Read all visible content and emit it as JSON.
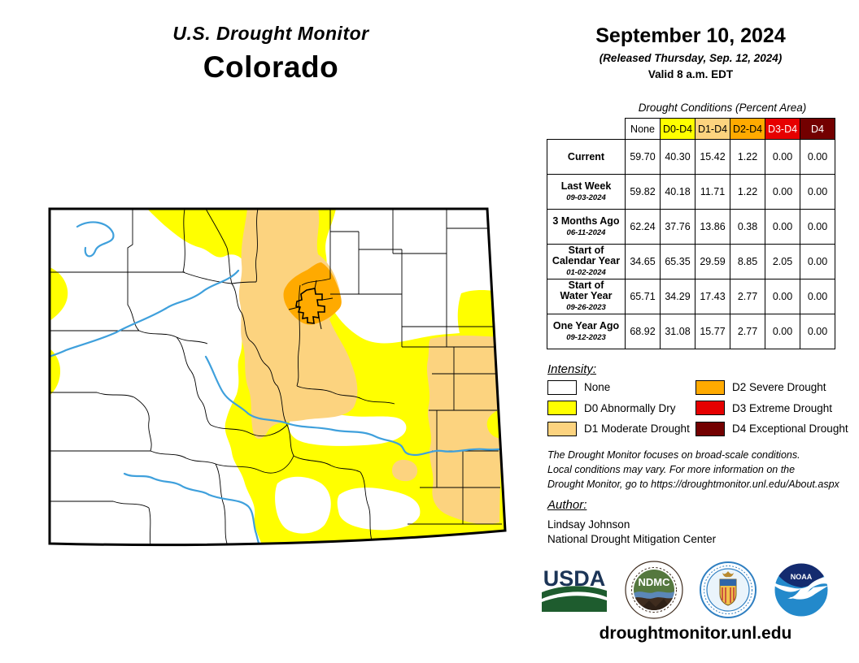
{
  "title": {
    "line1": "U.S. Drought Monitor",
    "state": "Colorado"
  },
  "date_block": {
    "date": "September 10, 2024",
    "released": "(Released Thursday, Sep. 12, 2024)",
    "valid": "Valid 8 a.m. EDT"
  },
  "table": {
    "title": "Drought Conditions (Percent Area)",
    "columns": [
      "None",
      "D0-D4",
      "D1-D4",
      "D2-D4",
      "D3-D4",
      "D4"
    ],
    "header_bg": [
      "#FFFFFF",
      "#FFFF00",
      "#FCD37F",
      "#FFAA00",
      "#E60000",
      "#730000"
    ],
    "header_fg": [
      "#000000",
      "#000000",
      "#000000",
      "#000000",
      "#FFFFFF",
      "#FFFFFF"
    ],
    "rows": [
      {
        "label_lines": [
          "Current"
        ],
        "sublabel": "",
        "values": [
          "59.70",
          "40.30",
          "15.42",
          "1.22",
          "0.00",
          "0.00"
        ]
      },
      {
        "label_lines": [
          "Last Week"
        ],
        "sublabel": "09-03-2024",
        "values": [
          "59.82",
          "40.18",
          "11.71",
          "1.22",
          "0.00",
          "0.00"
        ]
      },
      {
        "label_lines": [
          "3 Months Ago"
        ],
        "sublabel": "06-11-2024",
        "values": [
          "62.24",
          "37.76",
          "13.86",
          "0.38",
          "0.00",
          "0.00"
        ]
      },
      {
        "label_lines": [
          "Start of",
          "Calendar Year"
        ],
        "sublabel": "01-02-2024",
        "values": [
          "34.65",
          "65.35",
          "29.59",
          "8.85",
          "2.05",
          "0.00"
        ]
      },
      {
        "label_lines": [
          "Start of",
          "Water Year"
        ],
        "sublabel": "09-26-2023",
        "values": [
          "65.71",
          "34.29",
          "17.43",
          "2.77",
          "0.00",
          "0.00"
        ]
      },
      {
        "label_lines": [
          "One Year Ago"
        ],
        "sublabel": "09-12-2023",
        "values": [
          "68.92",
          "31.08",
          "15.77",
          "2.77",
          "0.00",
          "0.00"
        ]
      }
    ]
  },
  "legend": {
    "heading": "Intensity:",
    "items": [
      {
        "label": "None",
        "color": "#FFFFFF"
      },
      {
        "label": "D0 Abnormally Dry",
        "color": "#FFFF00"
      },
      {
        "label": "D1 Moderate Drought",
        "color": "#FCD37F"
      },
      {
        "label": "D2 Severe Drought",
        "color": "#FFAA00"
      },
      {
        "label": "D3 Extreme Drought",
        "color": "#E60000"
      },
      {
        "label": "D4 Exceptional Drought",
        "color": "#730000"
      }
    ]
  },
  "disclaimer_lines": [
    "The Drought Monitor focuses on broad-scale conditions.",
    "Local conditions may vary. For more information on the",
    "Drought Monitor, go to https://droughtmonitor.unl.edu/About.aspx"
  ],
  "author": {
    "heading": "Author:",
    "name": "Lindsay Johnson",
    "org": "National Drought Mitigation Center"
  },
  "logos": {
    "usda": "USDA",
    "ndmc": "NDMC",
    "noaa": "NOAA"
  },
  "footer_url": "droughtmonitor.unl.edu",
  "map": {
    "colors": {
      "none": "#FFFFFF",
      "d0": "#FFFF00",
      "d1": "#FCD37F",
      "d2": "#FFAA00",
      "d3": "#E60000",
      "d4": "#730000",
      "river": "#3FA0DC",
      "county": "#000000",
      "border": "#000000"
    }
  }
}
